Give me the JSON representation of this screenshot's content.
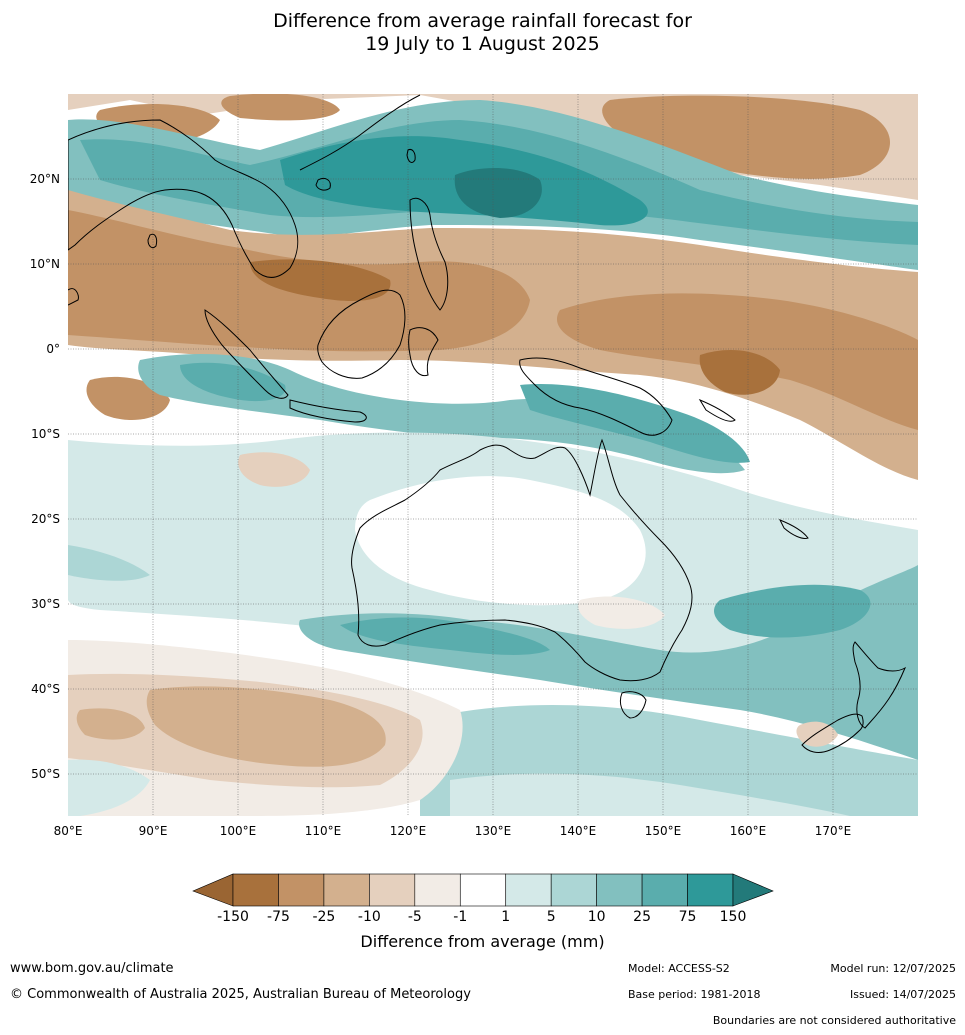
{
  "title": {
    "line1": "Difference from average rainfall forecast for",
    "line2": "19 July to 1 August 2025"
  },
  "map": {
    "lon_labels": [
      "80°E",
      "90°E",
      "100°E",
      "110°E",
      "120°E",
      "130°E",
      "140°E",
      "150°E",
      "160°E",
      "170°E"
    ],
    "lat_labels": [
      "20°N",
      "10°N",
      "0°",
      "10°S",
      "20°S",
      "30°S",
      "40°S",
      "50°S"
    ],
    "colors": {
      "dry_150": "#a8713c",
      "dry_75": "#c29266",
      "dry_25": "#d3b08e",
      "dry_10": "#e5d0be",
      "dry_5": "#f2ece6",
      "neutral": "#ffffff",
      "wet_1": "#d4e9e8",
      "wet_5": "#acd6d5",
      "wet_10": "#82c0bf",
      "wet_25": "#5aadad",
      "wet_75": "#2e9999",
      "wet_150": "#237a7a"
    }
  },
  "legend": {
    "title": "Difference from average (mm)",
    "ticks": [
      "-150",
      "-75",
      "-25",
      "-10",
      "-5",
      "-1",
      "1",
      "5",
      "10",
      "25",
      "75",
      "150"
    ],
    "colors": [
      "#a8713c",
      "#c29266",
      "#d3b08e",
      "#e5d0be",
      "#f2ece6",
      "#ffffff",
      "#d4e9e8",
      "#acd6d5",
      "#82c0bf",
      "#5aadad",
      "#2e9999"
    ],
    "arrow_left": "#9a6533",
    "arrow_right": "#237a7a"
  },
  "footer": {
    "website": "www.bom.gov.au/climate",
    "copyright": "© Commonwealth of Australia 2025, Australian Bureau of Meteorology",
    "model": "Model: ACCESS-S2",
    "base_period": "Base period: 1981-2018",
    "model_run": "Model run: 12/07/2025",
    "issued": "Issued: 14/07/2025",
    "disclaimer": "Boundaries are not considered authoritative"
  }
}
